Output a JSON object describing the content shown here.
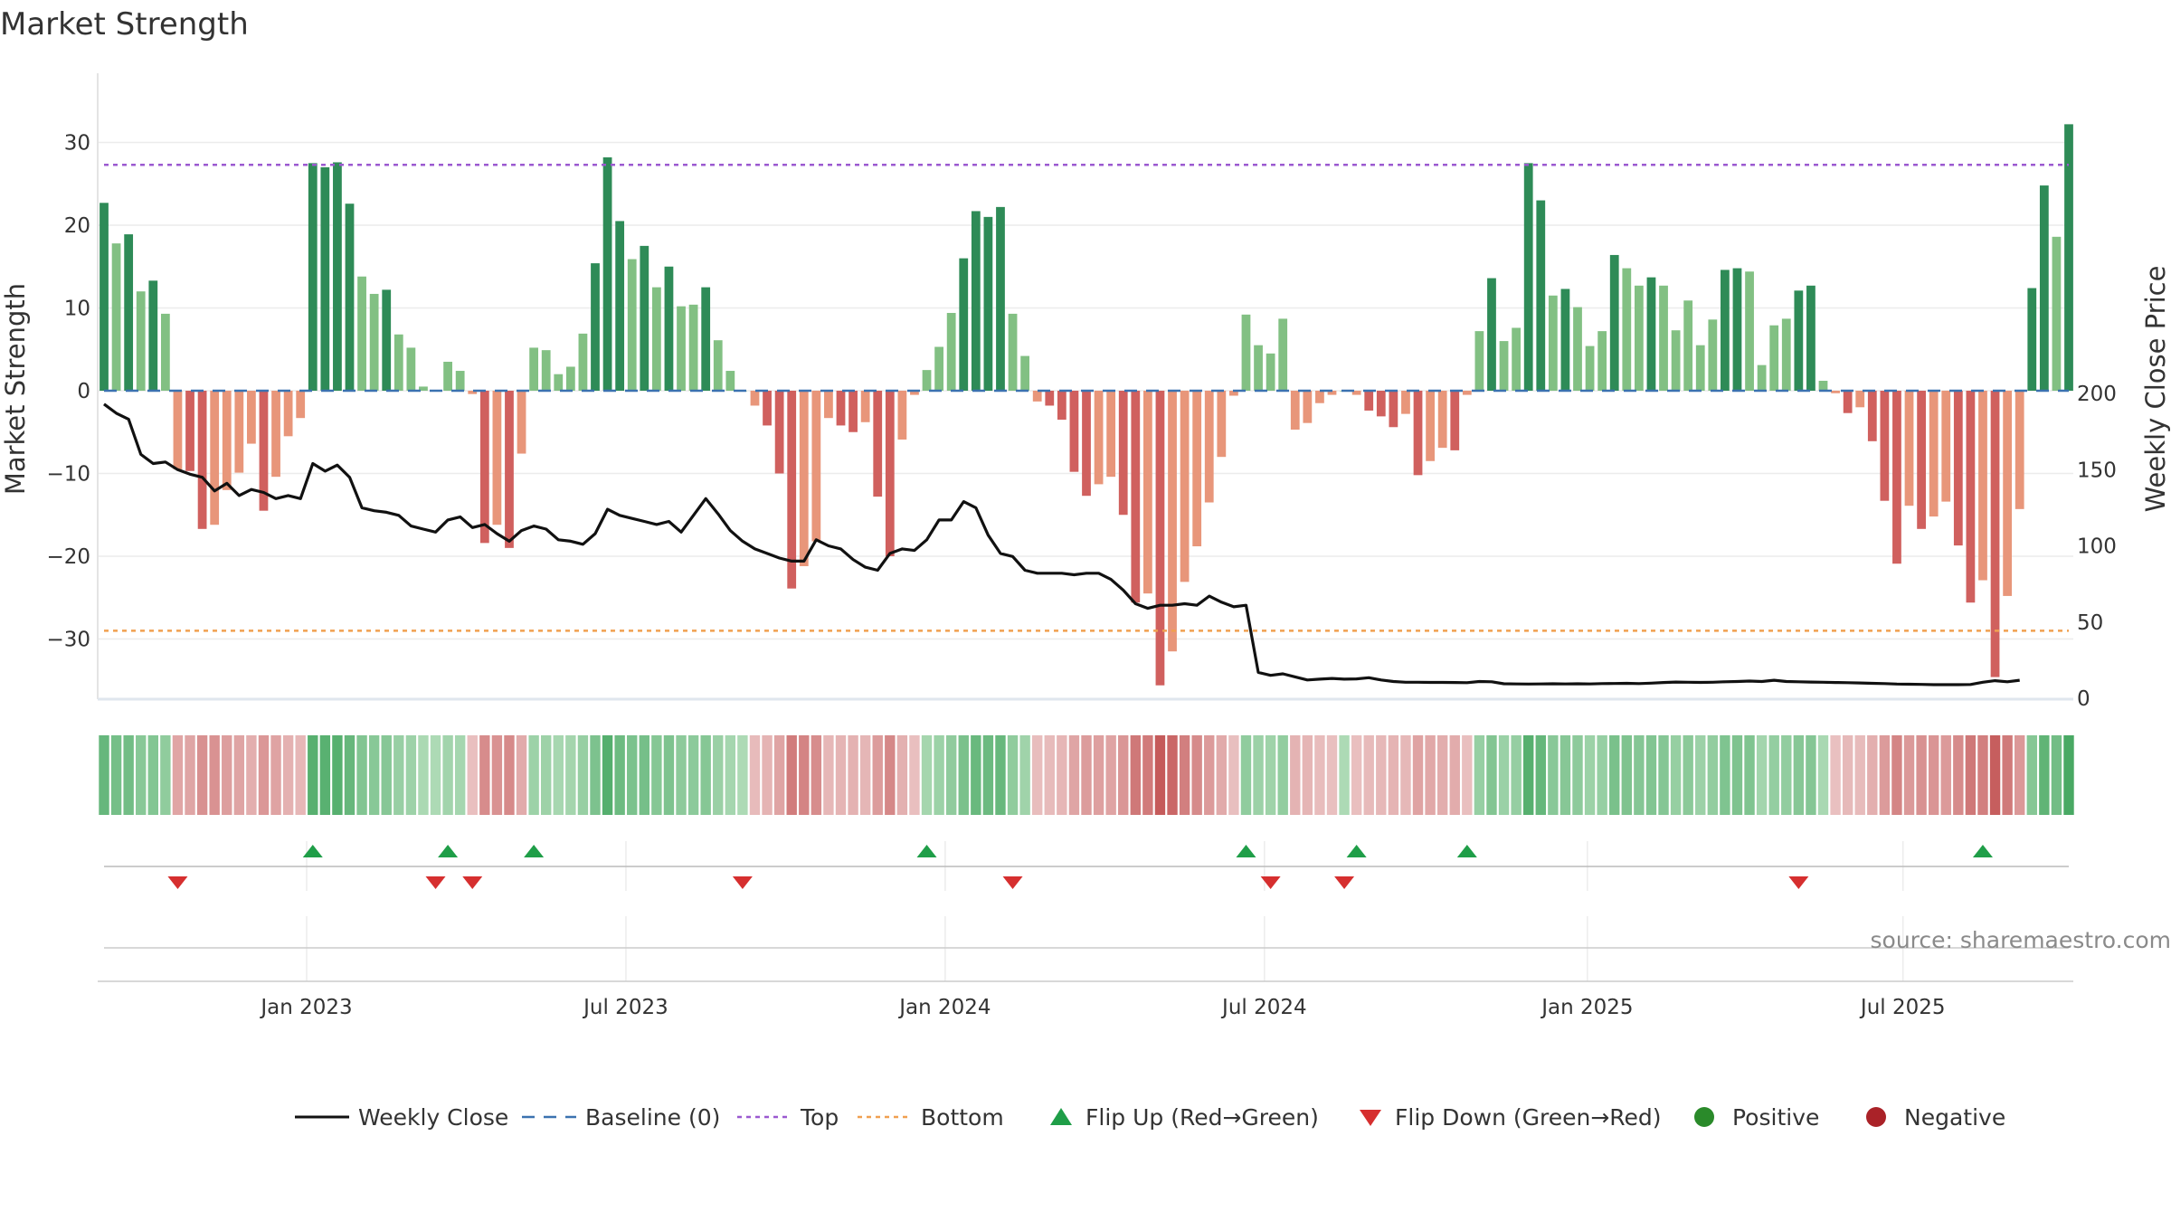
{
  "chart_data": {
    "type": "bar",
    "title": "Market Strength",
    "ylabel": "Market Strength",
    "y2label": "Weekly Close Price",
    "ylim": [
      -37,
      38
    ],
    "y2lim": [
      0,
      200
    ],
    "yticks": [
      "30",
      "20",
      "10",
      "0",
      "−10",
      "−20",
      "−30"
    ],
    "y2ticks": [
      "200",
      "150",
      "100",
      "50",
      "0"
    ],
    "top_line": 27.3,
    "bottom_line": -29,
    "xticks": [
      "Jan 2023",
      "Jul 2023",
      "Jan 2024",
      "Jul 2024",
      "Jan 2025",
      "Jul 2025"
    ],
    "strength": [
      22.7,
      17.8,
      18.9,
      12,
      13.3,
      9.3,
      -9.5,
      -9.7,
      -16.7,
      -16.2,
      -12,
      -9.9,
      -6.4,
      -14.5,
      -10.4,
      -5.5,
      -3.3,
      27.5,
      27,
      27.6,
      22.6,
      13.8,
      11.7,
      12.2,
      6.8,
      5.2,
      0.5,
      0,
      3.5,
      2.4,
      -0.4,
      -18.4,
      -16.2,
      -19,
      -7.6,
      5.2,
      4.9,
      2,
      2.9,
      6.9,
      15.4,
      28.2,
      20.5,
      15.9,
      17.5,
      12.5,
      15,
      10.2,
      10.4,
      12.5,
      6.1,
      2.4,
      0,
      -1.8,
      -4.2,
      -10,
      -23.9,
      -21.2,
      -18.2,
      -3.3,
      -4.2,
      -5,
      -3.8,
      -12.8,
      -20,
      -5.9,
      -0.5,
      2.5,
      5.3,
      9.4,
      16,
      21.7,
      21,
      22.2,
      9.3,
      4.2,
      -1.3,
      -1.8,
      -3.5,
      -9.8,
      -12.7,
      -11.3,
      -10.4,
      -15,
      -25.6,
      -24.5,
      -35.6,
      -31.5,
      -23.1,
      -18.8,
      -13.5,
      -8,
      -0.6,
      9.2,
      5.5,
      4.5,
      8.7,
      -4.7,
      -3.9,
      -1.5,
      -0.5,
      0,
      -0.5,
      -2.4,
      -3.1,
      -4.4,
      -2.8,
      -10.2,
      -8.5,
      -6.9,
      -7.2,
      -0.5,
      7.2,
      13.6,
      6,
      7.6,
      27.5,
      23,
      11.5,
      12.3,
      10.1,
      5.4,
      7.2,
      16.4,
      14.8,
      12.7,
      13.7,
      12.7,
      7.3,
      10.9,
      5.5,
      8.6,
      14.6,
      14.8,
      14.4,
      3.1,
      7.9,
      8.7,
      12.1,
      12.7,
      1.2,
      -0.3,
      -2.7,
      -2,
      -6.1,
      -13.3,
      -20.9,
      -13.9,
      -16.7,
      -15.2,
      -13.4,
      -18.7,
      -25.6,
      -22.9,
      -34.6,
      -24.8,
      -14.3,
      12.4,
      24.8,
      18.6,
      32.2
    ],
    "weekly_close": [
      193,
      187,
      183,
      160,
      154,
      155,
      150,
      147,
      145,
      136,
      141,
      133,
      137,
      135,
      131,
      133,
      131,
      154,
      149,
      153,
      145,
      125,
      123,
      122,
      120,
      113,
      111,
      109,
      117,
      119,
      112,
      114,
      108,
      103,
      110,
      113,
      111,
      104,
      103,
      101,
      108,
      124,
      120,
      118,
      116,
      114,
      116,
      109,
      120,
      131,
      121,
      110,
      103,
      98,
      95,
      92,
      90,
      90,
      104,
      100,
      98,
      91,
      86,
      84,
      95,
      98,
      97,
      104,
      117,
      117,
      129,
      125,
      107,
      95,
      93,
      84,
      82,
      82,
      82,
      81,
      82,
      82,
      78,
      71,
      62,
      59,
      61,
      61,
      62,
      61,
      67,
      63,
      60,
      61,
      17,
      15,
      16,
      14,
      12,
      12.5,
      13,
      12.5,
      12.7,
      13.5,
      12,
      11,
      10.5,
      10.5,
      10.4,
      10.4,
      10.3,
      10.2,
      11,
      10.8,
      9.5,
      9.4,
      9.3,
      9.4,
      9.5,
      9.4,
      9.5,
      9.4,
      9.6,
      9.7,
      9.8,
      9.6,
      9.9,
      10.3,
      10.6,
      10.5,
      10.4,
      10.5,
      10.8,
      11,
      11.3,
      11,
      11.8,
      11,
      10.8,
      10.6,
      10.5,
      10.3,
      10.2,
      10,
      9.8,
      9.6,
      9.3,
      9.2,
      9.1,
      8.9,
      8.9,
      8.9,
      9,
      10.5,
      11.5,
      10.8,
      11.8
    ],
    "flip_up": [
      17,
      28,
      35,
      67,
      93,
      102,
      111,
      153
    ],
    "flip_down": [
      6,
      27,
      30,
      52,
      74,
      95,
      101,
      138
    ],
    "legend": [
      "Weekly Close",
      "Baseline (0)",
      "Top",
      "Bottom",
      "Flip Up (Red→Green)",
      "Flip Down (Green→Red)",
      "Positive",
      "Negative"
    ]
  },
  "source": "source: sharemaestro.com",
  "colors": {
    "pos_dark": "#2e8b57",
    "pos_light": "#82c083",
    "neg_dark": "#d0605e",
    "neg_light": "#e8967a",
    "top": "#9b59d0",
    "bottom": "#f0a050",
    "baseline": "#3b72b0",
    "up": "#1f9e48",
    "down": "#d62f2f",
    "positive_dot": "#2a8a2a",
    "negative_dot": "#aa2228"
  }
}
